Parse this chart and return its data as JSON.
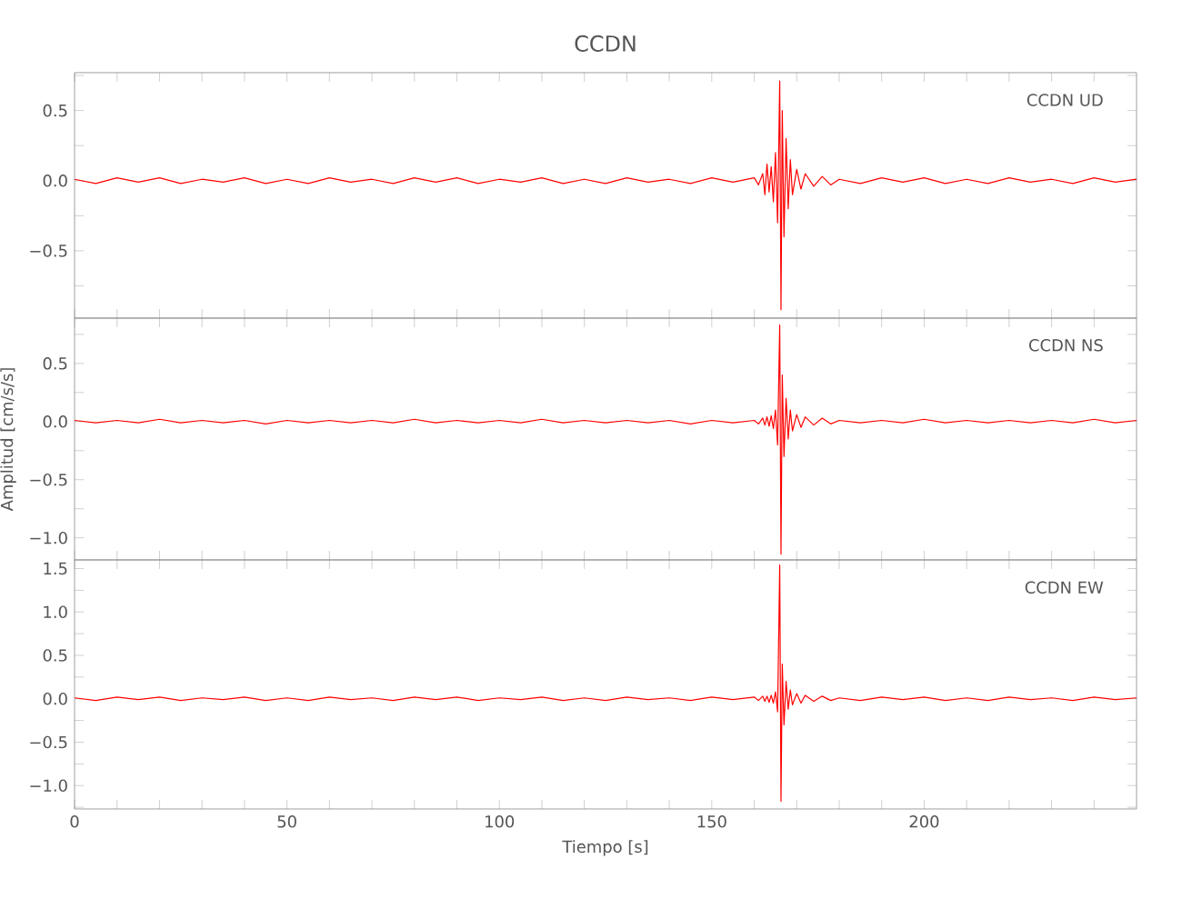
{
  "chart_data": [
    {
      "type": "line",
      "title": "CCDN",
      "color": "#ff0000",
      "annotations": [
        "CCDN   UD"
      ],
      "tick_labels": "y",
      "x": [
        0,
        5,
        10,
        15,
        20,
        25,
        30,
        35,
        40,
        45,
        50,
        55,
        60,
        65,
        70,
        75,
        80,
        85,
        90,
        95,
        100,
        105,
        110,
        115,
        120,
        125,
        130,
        135,
        140,
        145,
        150,
        155,
        160,
        161,
        162,
        162.5,
        163,
        163.5,
        164,
        164.5,
        165,
        165.5,
        166,
        166.3,
        166.6,
        167,
        167.5,
        168,
        168.5,
        169,
        170,
        171,
        172,
        174,
        176,
        178,
        180,
        185,
        190,
        195,
        200,
        205,
        210,
        215,
        220,
        225,
        230,
        235,
        240,
        245,
        250
      ],
      "values": [
        0.01,
        -0.02,
        0.02,
        -0.01,
        0.02,
        -0.02,
        0.01,
        -0.01,
        0.02,
        -0.02,
        0.01,
        -0.02,
        0.02,
        -0.01,
        0.01,
        -0.02,
        0.02,
        -0.01,
        0.02,
        -0.02,
        0.01,
        -0.01,
        0.02,
        -0.02,
        0.01,
        -0.02,
        0.02,
        -0.01,
        0.01,
        -0.02,
        0.02,
        -0.01,
        0.02,
        -0.03,
        0.05,
        -0.1,
        0.12,
        -0.08,
        0.1,
        -0.15,
        0.2,
        -0.3,
        0.71,
        -0.92,
        0.5,
        -0.4,
        0.3,
        -0.2,
        0.15,
        -0.1,
        0.08,
        -0.06,
        0.05,
        -0.04,
        0.03,
        -0.03,
        0.01,
        -0.02,
        0.02,
        -0.01,
        0.02,
        -0.02,
        0.01,
        -0.02,
        0.02,
        -0.01,
        0.01,
        -0.02,
        0.02,
        -0.01,
        0.01
      ],
      "xlim": [
        0,
        250
      ],
      "ylim": [
        -0.98,
        0.77
      ],
      "xticks": [
        0,
        {
          "value": 10,
          "label": null
        },
        {
          "value": 20,
          "label": null
        },
        {
          "value": 30,
          "label": null
        },
        {
          "value": 40,
          "label": null
        },
        50,
        {
          "value": 60,
          "label": null
        },
        {
          "value": 70,
          "label": null
        },
        {
          "value": 80,
          "label": null
        },
        {
          "value": 90,
          "label": null
        },
        100,
        {
          "value": 110,
          "label": null
        },
        {
          "value": 120,
          "label": null
        },
        {
          "value": 130,
          "label": null
        },
        {
          "value": 140,
          "label": null
        },
        150,
        {
          "value": 160,
          "label": null
        },
        {
          "value": 170,
          "label": null
        },
        {
          "value": 180,
          "label": null
        },
        {
          "value": 190,
          "label": null
        },
        200,
        {
          "value": 210,
          "label": null
        },
        {
          "value": 220,
          "label": null
        },
        {
          "value": 230,
          "label": null
        },
        {
          "value": 240,
          "label": null
        }
      ],
      "yticks": [
        {
          "value": -0.75,
          "label": null
        },
        {
          "value": -0.5,
          "label": "−0.5"
        },
        {
          "value": -0.25,
          "label": null
        },
        {
          "value": 0,
          "label": "0.0"
        },
        {
          "value": 0.25,
          "label": null
        },
        {
          "value": 0.5,
          "label": "0.5"
        },
        {
          "value": 0.75,
          "label": null
        }
      ]
    },
    {
      "type": "line",
      "ylabel": "Amplitud [cm/s/s]",
      "color": "#ff0000",
      "annotations": [
        "CCDN   NS"
      ],
      "tick_labels": "y",
      "x": [
        0,
        5,
        10,
        15,
        20,
        25,
        30,
        35,
        40,
        45,
        50,
        55,
        60,
        65,
        70,
        75,
        80,
        85,
        90,
        95,
        100,
        105,
        110,
        115,
        120,
        125,
        130,
        135,
        140,
        145,
        150,
        155,
        160,
        161,
        162,
        162.5,
        163,
        163.5,
        164,
        164.5,
        165,
        165.5,
        166,
        166.3,
        166.6,
        167,
        167.5,
        168,
        168.5,
        169,
        170,
        171,
        172,
        174,
        176,
        178,
        180,
        185,
        190,
        195,
        200,
        205,
        210,
        215,
        220,
        225,
        230,
        235,
        240,
        245,
        250
      ],
      "values": [
        0.01,
        -0.01,
        0.01,
        -0.01,
        0.02,
        -0.01,
        0.01,
        -0.01,
        0.01,
        -0.02,
        0.01,
        -0.01,
        0.01,
        -0.01,
        0.01,
        -0.01,
        0.02,
        -0.01,
        0.01,
        -0.01,
        0.01,
        -0.01,
        0.02,
        -0.01,
        0.01,
        -0.01,
        0.01,
        -0.01,
        0.01,
        -0.02,
        0.01,
        -0.01,
        0.01,
        -0.02,
        0.03,
        -0.03,
        0.04,
        -0.04,
        0.05,
        -0.06,
        0.1,
        -0.2,
        0.83,
        -1.14,
        0.4,
        -0.3,
        0.2,
        -0.15,
        0.1,
        -0.08,
        0.06,
        -0.05,
        0.04,
        -0.03,
        0.03,
        -0.02,
        0.01,
        -0.01,
        0.01,
        -0.01,
        0.02,
        -0.01,
        0.01,
        -0.01,
        0.01,
        -0.01,
        0.01,
        -0.01,
        0.02,
        -0.01,
        0.01
      ],
      "xlim": [
        0,
        250
      ],
      "ylim": [
        -1.19,
        0.89
      ],
      "xticks": [
        0,
        {
          "value": 10,
          "label": null
        },
        {
          "value": 20,
          "label": null
        },
        {
          "value": 30,
          "label": null
        },
        {
          "value": 40,
          "label": null
        },
        50,
        {
          "value": 60,
          "label": null
        },
        {
          "value": 70,
          "label": null
        },
        {
          "value": 80,
          "label": null
        },
        {
          "value": 90,
          "label": null
        },
        100,
        {
          "value": 110,
          "label": null
        },
        {
          "value": 120,
          "label": null
        },
        {
          "value": 130,
          "label": null
        },
        {
          "value": 140,
          "label": null
        },
        150,
        {
          "value": 160,
          "label": null
        },
        {
          "value": 170,
          "label": null
        },
        {
          "value": 180,
          "label": null
        },
        {
          "value": 190,
          "label": null
        },
        200,
        {
          "value": 210,
          "label": null
        },
        {
          "value": 220,
          "label": null
        },
        {
          "value": 230,
          "label": null
        },
        {
          "value": 240,
          "label": null
        }
      ],
      "yticks": [
        {
          "value": -1.0,
          "label": "−1.0"
        },
        {
          "value": -0.75,
          "label": null
        },
        {
          "value": -0.5,
          "label": "−0.5"
        },
        {
          "value": -0.25,
          "label": null
        },
        {
          "value": 0,
          "label": "0.0"
        },
        {
          "value": 0.25,
          "label": null
        },
        {
          "value": 0.5,
          "label": "0.5"
        },
        {
          "value": 0.75,
          "label": null
        }
      ]
    },
    {
      "type": "line",
      "xlabel": "Tiempo [s]",
      "color": "#ff0000",
      "annotations": [
        "CCDN   EW"
      ],
      "x": [
        0,
        5,
        10,
        15,
        20,
        25,
        30,
        35,
        40,
        45,
        50,
        55,
        60,
        65,
        70,
        75,
        80,
        85,
        90,
        95,
        100,
        105,
        110,
        115,
        120,
        125,
        130,
        135,
        140,
        145,
        150,
        155,
        160,
        161,
        162,
        162.5,
        163,
        163.5,
        164,
        164.5,
        165,
        165.5,
        166,
        166.3,
        166.6,
        167,
        167.5,
        168,
        168.5,
        169,
        170,
        171,
        172,
        174,
        176,
        178,
        180,
        185,
        190,
        195,
        200,
        205,
        210,
        215,
        220,
        225,
        230,
        235,
        240,
        245,
        250
      ],
      "values": [
        0.01,
        -0.02,
        0.02,
        -0.01,
        0.02,
        -0.02,
        0.01,
        -0.01,
        0.02,
        -0.02,
        0.01,
        -0.02,
        0.02,
        -0.01,
        0.01,
        -0.02,
        0.02,
        -0.01,
        0.02,
        -0.02,
        0.01,
        -0.01,
        0.02,
        -0.02,
        0.01,
        -0.02,
        0.02,
        -0.01,
        0.01,
        -0.02,
        0.02,
        -0.01,
        0.02,
        -0.02,
        0.03,
        -0.03,
        0.03,
        -0.04,
        0.04,
        -0.05,
        0.08,
        -0.15,
        1.54,
        -1.18,
        0.4,
        -0.3,
        0.2,
        -0.12,
        0.1,
        -0.07,
        0.06,
        -0.05,
        0.04,
        -0.03,
        0.03,
        -0.02,
        0.01,
        -0.02,
        0.02,
        -0.01,
        0.02,
        -0.02,
        0.01,
        -0.02,
        0.02,
        -0.01,
        0.01,
        -0.02,
        0.02,
        -0.01,
        0.01
      ],
      "xlim": [
        0,
        250
      ],
      "ylim": [
        -1.27,
        1.6
      ],
      "xticks": [
        0,
        {
          "value": 10,
          "label": null
        },
        {
          "value": 20,
          "label": null
        },
        {
          "value": 30,
          "label": null
        },
        {
          "value": 40,
          "label": null
        },
        50,
        {
          "value": 60,
          "label": null
        },
        {
          "value": 70,
          "label": null
        },
        {
          "value": 80,
          "label": null
        },
        {
          "value": 90,
          "label": null
        },
        100,
        {
          "value": 110,
          "label": null
        },
        {
          "value": 120,
          "label": null
        },
        {
          "value": 130,
          "label": null
        },
        {
          "value": 140,
          "label": null
        },
        150,
        {
          "value": 160,
          "label": null
        },
        {
          "value": 170,
          "label": null
        },
        {
          "value": 180,
          "label": null
        },
        {
          "value": 190,
          "label": null
        },
        200,
        {
          "value": 210,
          "label": null
        },
        {
          "value": 220,
          "label": null
        },
        {
          "value": 230,
          "label": null
        },
        {
          "value": 240,
          "label": null
        }
      ],
      "yticks": [
        {
          "value": -1.25,
          "label": null
        },
        {
          "value": -1.0,
          "label": "−1.0"
        },
        {
          "value": -0.75,
          "label": null
        },
        {
          "value": -0.5,
          "label": "−0.5"
        },
        {
          "value": -0.25,
          "label": null
        },
        {
          "value": 0,
          "label": "0.0"
        },
        {
          "value": 0.25,
          "label": null
        },
        {
          "value": 0.5,
          "label": "0.5"
        },
        {
          "value": 0.75,
          "label": null
        },
        {
          "value": 1.0,
          "label": "1.0"
        },
        {
          "value": 1.25,
          "label": null
        },
        {
          "value": 1.5,
          "label": "1.5"
        }
      ]
    }
  ]
}
